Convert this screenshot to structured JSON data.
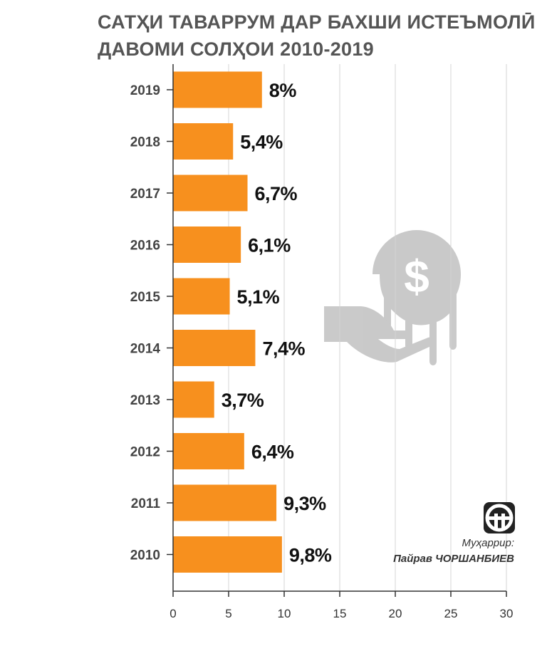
{
  "chart_data": {
    "type": "bar",
    "orientation": "horizontal",
    "title_lines": [
      "САТҲИ ТАВАРРУМ ДАР БАХШИ ИСТЕЪМОЛӢ",
      "ДАВОМИ СОЛҲОИ 2010-2019"
    ],
    "categories": [
      "2019",
      "2018",
      "2017",
      "2016",
      "2015",
      "2014",
      "2013",
      "2012",
      "2011",
      "2010"
    ],
    "values": [
      8,
      5.4,
      6.7,
      6.1,
      5.1,
      7.4,
      3.7,
      6.4,
      9.3,
      9.8
    ],
    "value_labels": [
      "8%",
      "5,4%",
      "6,7%",
      "6,1%",
      "5,1%",
      "7,4%",
      "3,7%",
      "6,4%",
      "9,3%",
      "9,8%"
    ],
    "xlim": [
      0,
      30
    ],
    "xticks": [
      "0",
      "5",
      "10",
      "15",
      "20",
      "25",
      "30"
    ],
    "grid": true,
    "bar_color": "#F7901E"
  },
  "credit": {
    "role": "Муҳаррир:",
    "author": "Пайрав ЧОРШАНБИЕВ"
  },
  "watermark_icon": "hand-holding-dollar-coin-icon",
  "logo_icon": "ap-logo-icon"
}
